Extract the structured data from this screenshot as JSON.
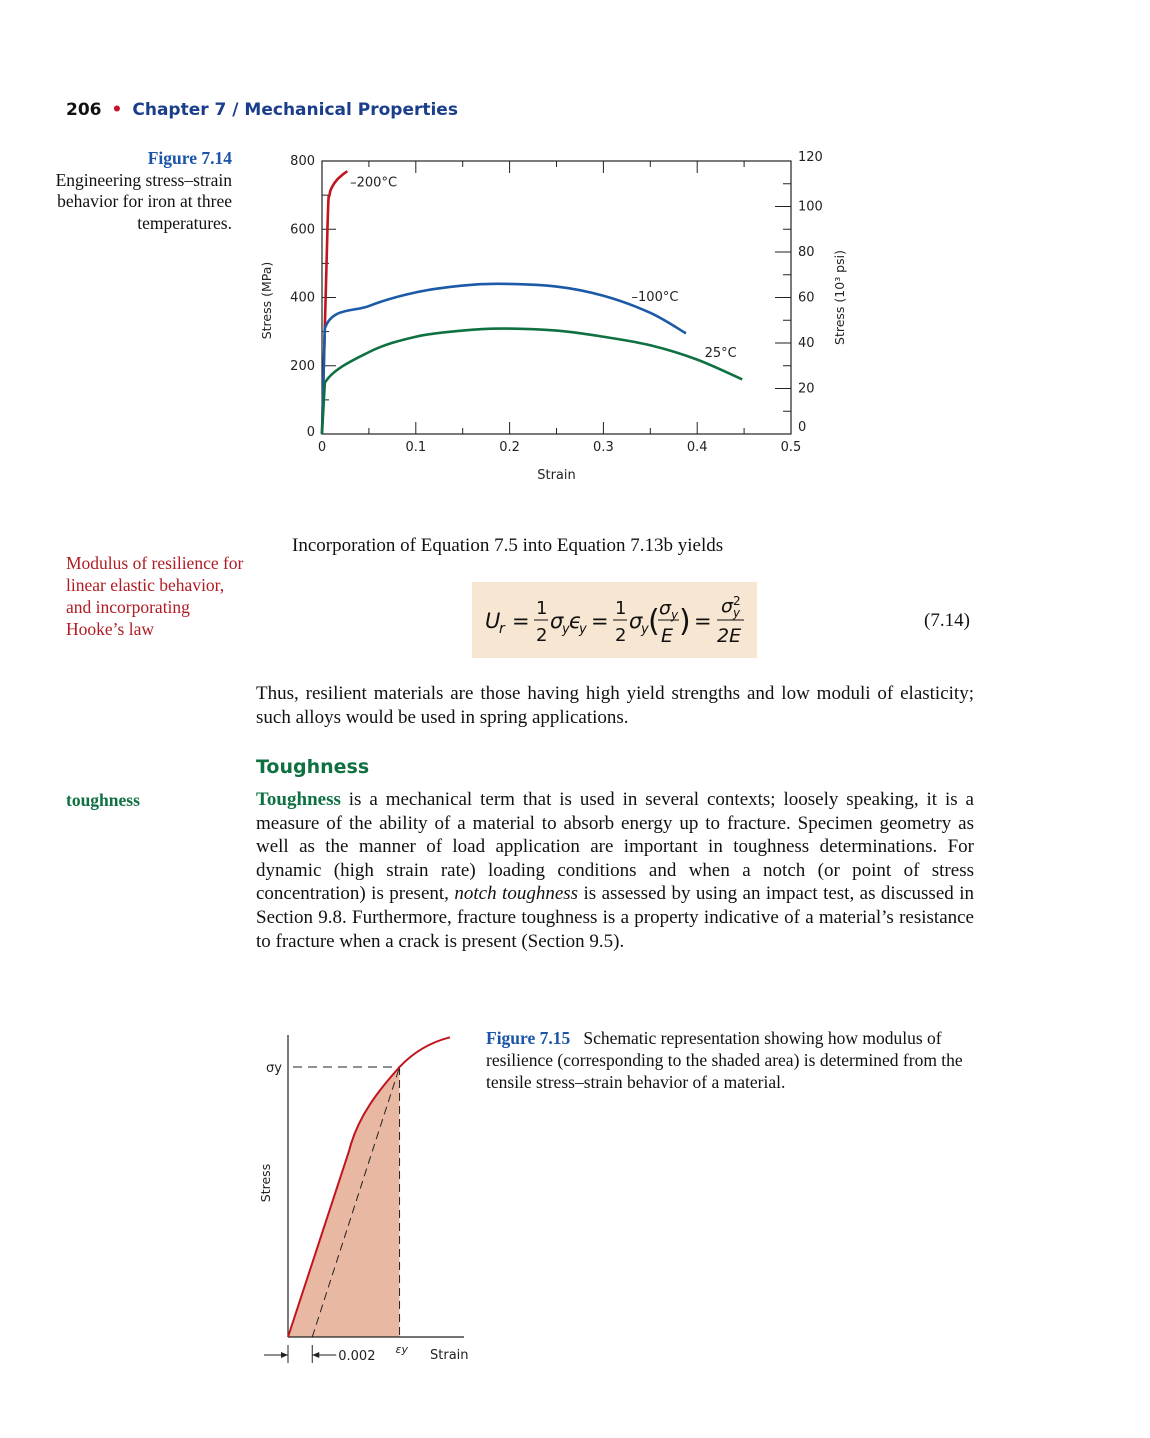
{
  "header": {
    "page_number": "206",
    "bullet": "•",
    "chapter": "Chapter 7 / Mechanical Properties"
  },
  "figure_7_14": {
    "label": "Figure 7.14",
    "caption": "Engineering stress–strain behavior for iron at three temperatures."
  },
  "chart_data": [
    {
      "type": "line",
      "title": "",
      "xlabel": "Strain",
      "ylabel": "Stress (MPa)",
      "y2label": "Stress (10³ psi)",
      "xlim": [
        0,
        0.5
      ],
      "ylim": [
        0,
        800
      ],
      "y2lim": [
        0,
        120
      ],
      "xticks": [
        "0",
        "0.1",
        "0.2",
        "0.3",
        "0.4",
        "0.5"
      ],
      "yticks": [
        "0",
        "200",
        "400",
        "600",
        "800"
      ],
      "y2ticks": [
        "0",
        "20",
        "40",
        "60",
        "80",
        "100",
        "120"
      ],
      "grid": false,
      "series": [
        {
          "name": "–200°C",
          "color": "#c0141e",
          "x": [
            0,
            0.006,
            0.008,
            0.011,
            0.016,
            0.022,
            0.027
          ],
          "y": [
            0,
            620,
            700,
            725,
            745,
            760,
            770
          ]
        },
        {
          "name": "–100°C",
          "color": "#1a5aa6",
          "x": [
            0,
            0.003,
            0.05,
            0.1,
            0.15,
            0.19,
            0.25,
            0.3,
            0.35,
            0.388
          ],
          "y": [
            0,
            310,
            375,
            415,
            435,
            440,
            432,
            405,
            355,
            295
          ]
        },
        {
          "name": "25°C",
          "color": "#0f7042",
          "x": [
            0,
            0.003,
            0.05,
            0.1,
            0.15,
            0.19,
            0.25,
            0.3,
            0.35,
            0.4,
            0.448
          ],
          "y": [
            0,
            150,
            240,
            285,
            303,
            309,
            303,
            285,
            260,
            218,
            160
          ]
        }
      ]
    },
    {
      "type": "line",
      "title": "",
      "xlabel": "Strain",
      "ylabel": "Stress",
      "annotations": [
        "σy",
        "εy",
        "0.002"
      ],
      "series": [
        {
          "name": "",
          "color": "#c0141e",
          "x": [
            0,
            0.002,
            0.004,
            0.0055,
            0.007,
            0.0085,
            0.01,
            0.0115
          ],
          "y": [
            0,
            0.2,
            0.4,
            0.6,
            0.77,
            0.86,
            0.94,
            1.0
          ]
        }
      ]
    }
  ],
  "intro_equation_text": "Incorporation of Equation 7.5 into Equation 7.13b yields",
  "modulus_note": "Modulus of resilience for linear elastic behavior, and incorporating Hooke’s law",
  "equation": {
    "U": "U",
    "r": "r",
    "eq": "=",
    "one": "1",
    "two": "2",
    "sigma": "σ",
    "eps": "ϵ",
    "y": "y",
    "E": "E",
    "twoE": "2E",
    "sq": "2",
    "lparen": "(",
    "rparen": ")",
    "number": "(7.14)"
  },
  "paragraph_resilient": "Thus, resilient materials are those having high yield strengths and low moduli of elasticity; such alloys would be used in spring applications.",
  "section_title": "Toughness",
  "margin_term": "toughness",
  "paragraph_toughness": {
    "term": "Toughness",
    "part1": " is a mechanical term that is used in several contexts; loosely speaking, it is a measure of the ability of a material to absorb energy up to fracture. Specimen geometry as well as the manner of load application are important in toughness determinations. For dynamic (high strain rate) loading conditions and when a notch (or point of stress concentration) is present, ",
    "italic": "notch toughness",
    "part2": " is assessed by using an impact test, as discussed in Section 9.8. Furthermore, fracture toughness is a property indicative of a material’s resistance to fracture when a crack is present (Section 9.5)."
  },
  "figure_7_15": {
    "label": "Figure 7.15",
    "caption": "Schematic representation showing how modulus of resilience (corresponding to the shaded area) is determined from the tensile stress–strain behavior of a material."
  }
}
